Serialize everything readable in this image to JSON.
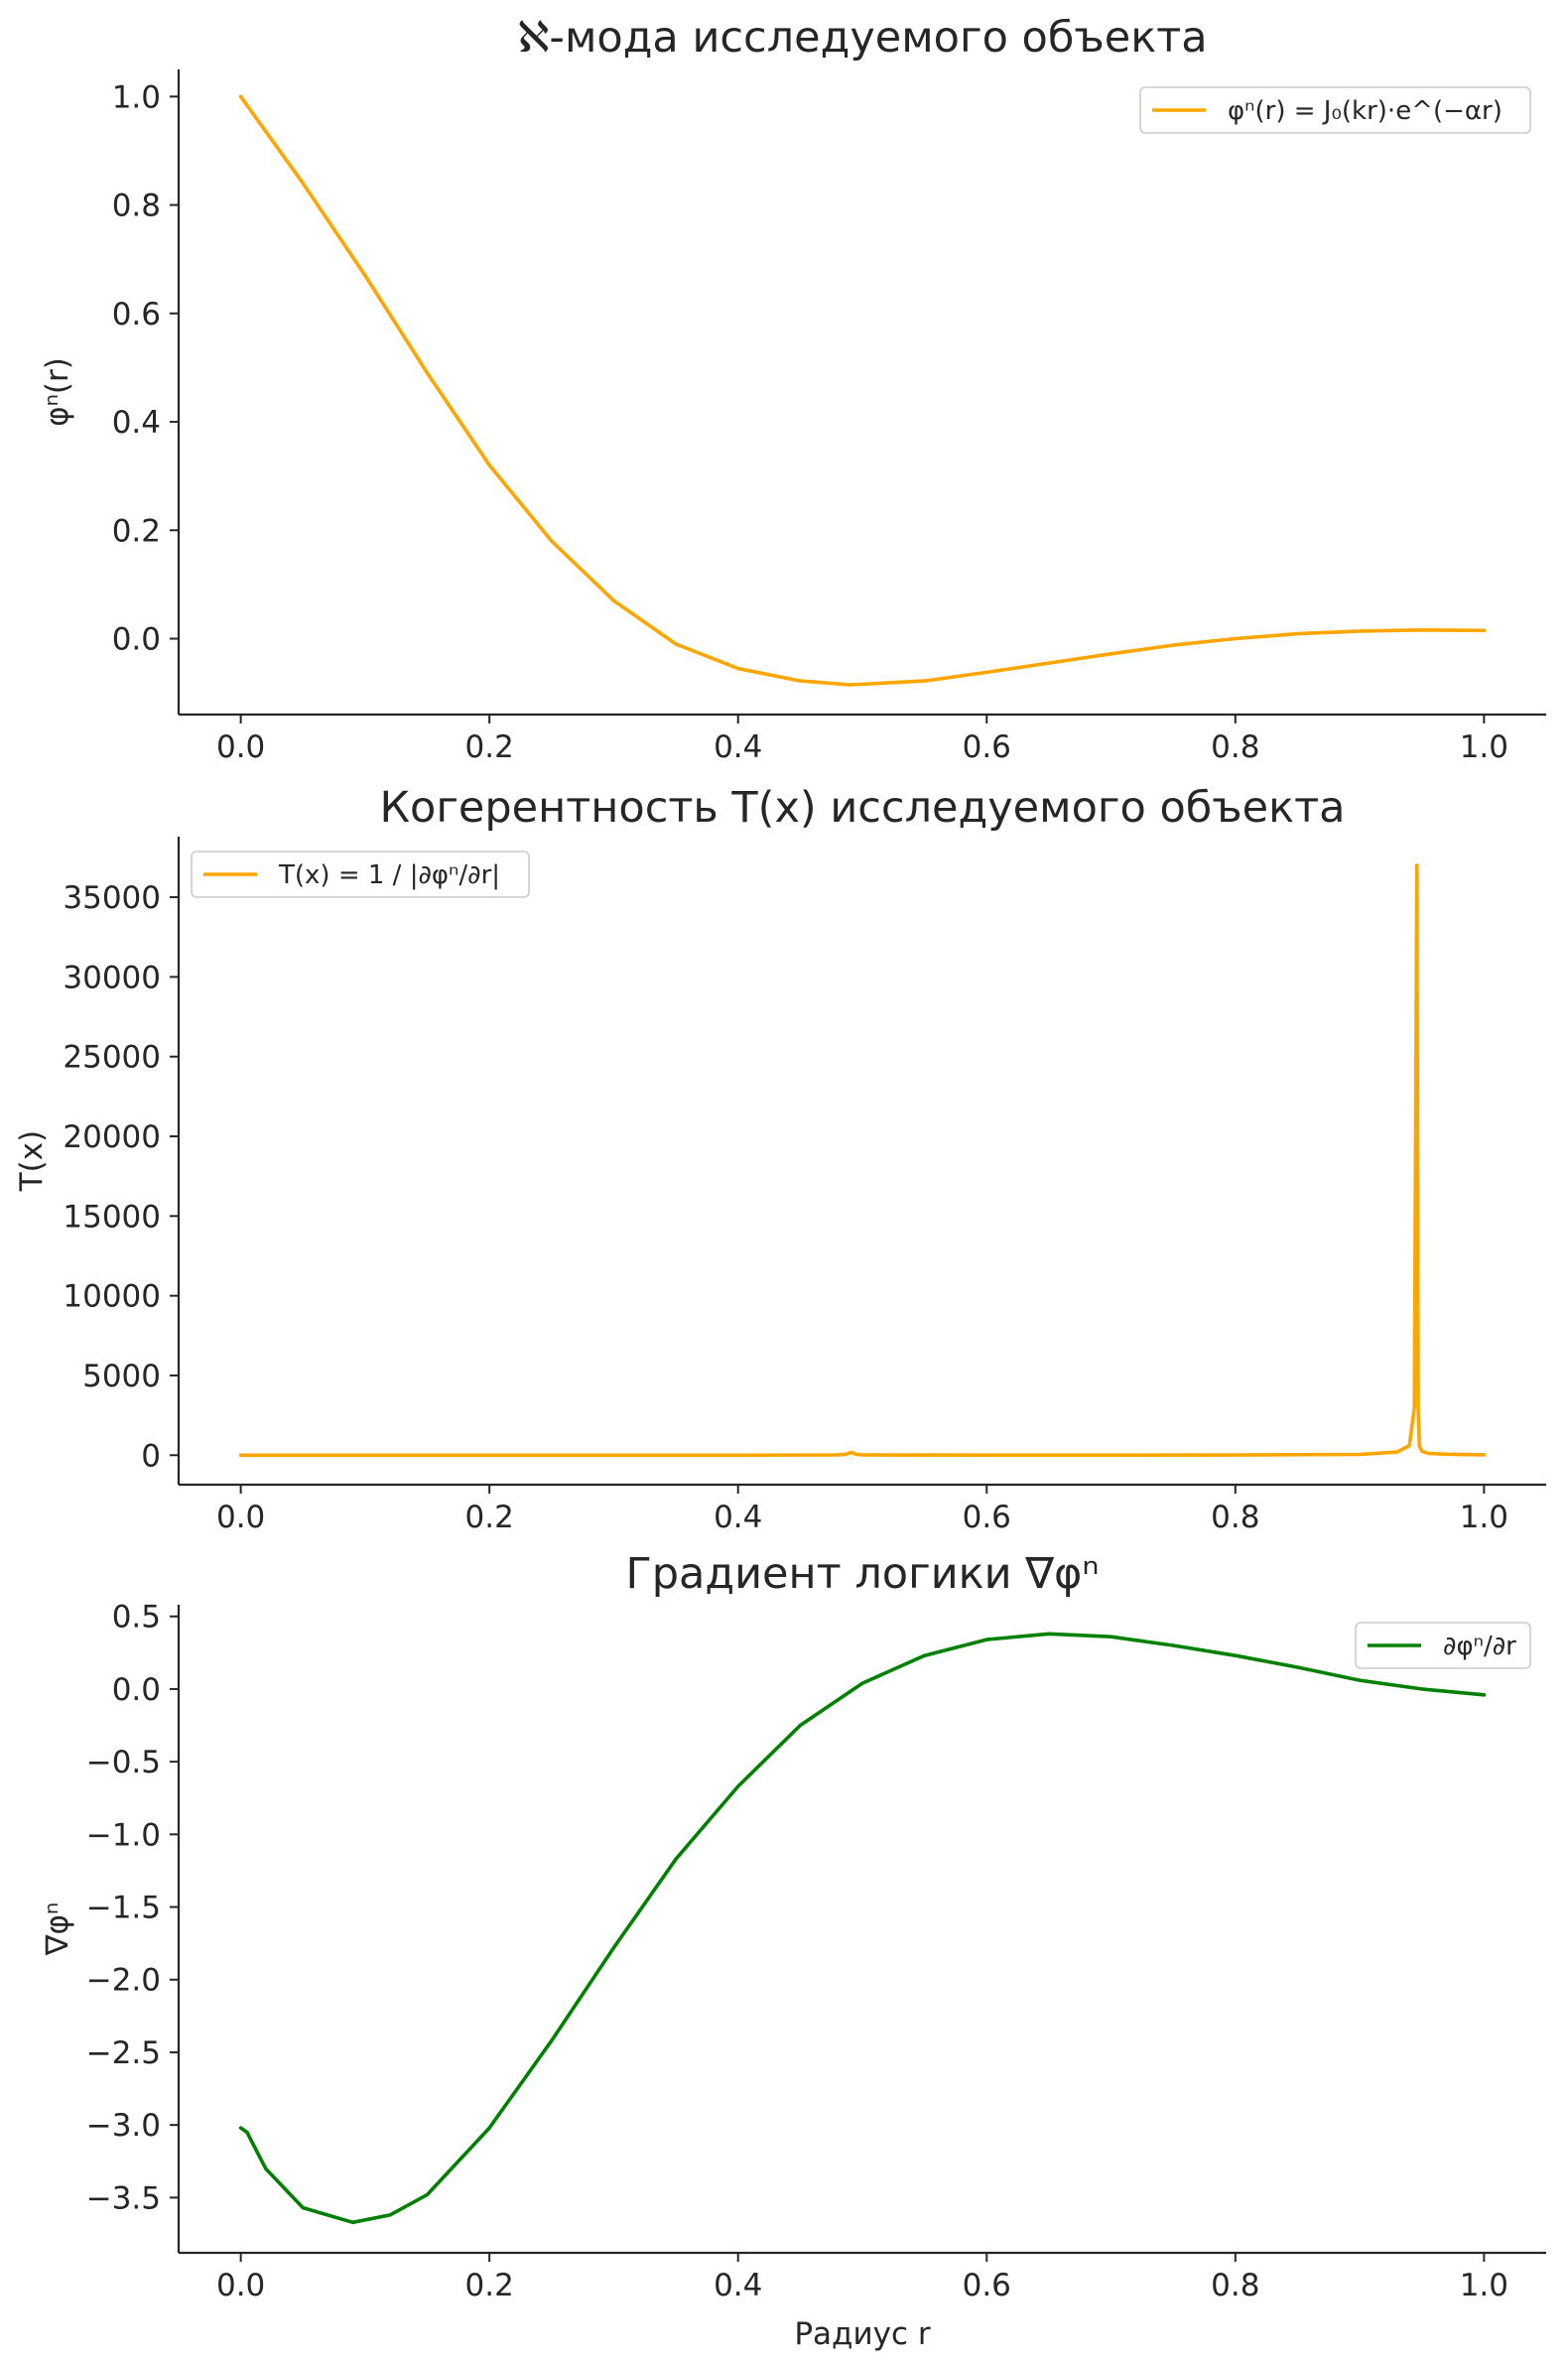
{
  "chart_data": [
    {
      "type": "line",
      "title": "ℵ-мода исследуемого объекта",
      "xlabel": "",
      "ylabel": "φⁿ(r)",
      "xlim": [
        -0.05,
        1.05
      ],
      "ylim": [
        -0.14,
        1.05
      ],
      "xticks": [
        0.0,
        0.2,
        0.4,
        0.6,
        0.8,
        1.0
      ],
      "xtick_labels": [
        "0.0",
        "0.2",
        "0.4",
        "0.6",
        "0.8",
        "1.0"
      ],
      "yticks": [
        0.0,
        0.2,
        0.4,
        0.6,
        0.8,
        1.0
      ],
      "ytick_labels": [
        "0.0",
        "0.2",
        "0.4",
        "0.6",
        "0.8",
        "1.0"
      ],
      "legend_position": "top-right",
      "grid": false,
      "series": [
        {
          "name": "φⁿ(r) = J₀(kr)·e^(−αr)",
          "color": "#FFA500",
          "x": [
            0.0,
            0.05,
            0.1,
            0.15,
            0.2,
            0.25,
            0.3,
            0.35,
            0.4,
            0.45,
            0.49,
            0.55,
            0.6,
            0.65,
            0.7,
            0.75,
            0.8,
            0.85,
            0.9,
            0.95,
            1.0
          ],
          "y": [
            1.0,
            0.84,
            0.67,
            0.49,
            0.32,
            0.18,
            0.07,
            -0.01,
            -0.055,
            -0.078,
            -0.085,
            -0.078,
            -0.062,
            -0.045,
            -0.028,
            -0.012,
            0.0,
            0.009,
            0.014,
            0.016,
            0.015
          ]
        }
      ]
    },
    {
      "type": "line",
      "title": "Когерентность T(x) исследуемого объекта",
      "xlabel": "",
      "ylabel": "T(x)",
      "xlim": [
        -0.05,
        1.05
      ],
      "ylim": [
        -1850,
        38800
      ],
      "xticks": [
        0.0,
        0.2,
        0.4,
        0.6,
        0.8,
        1.0
      ],
      "xtick_labels": [
        "0.0",
        "0.2",
        "0.4",
        "0.6",
        "0.8",
        "1.0"
      ],
      "yticks": [
        0,
        5000,
        10000,
        15000,
        20000,
        25000,
        30000,
        35000
      ],
      "ytick_labels": [
        "0",
        "5000",
        "10000",
        "15000",
        "20000",
        "25000",
        "30000",
        "35000"
      ],
      "legend_position": "top-left",
      "grid": false,
      "series": [
        {
          "name": "T(x) = 1 / |∂φⁿ/∂r|",
          "color": "#FFA500",
          "x": [
            0.0,
            0.1,
            0.2,
            0.3,
            0.4,
            0.48,
            0.487,
            0.491,
            0.495,
            0.5,
            0.6,
            0.7,
            0.8,
            0.9,
            0.93,
            0.94,
            0.944,
            0.946,
            0.947,
            0.948,
            0.95,
            0.955,
            0.97,
            1.0
          ],
          "y": [
            0.3,
            0.3,
            0.3,
            0.5,
            0.9,
            20,
            60,
            180,
            60,
            20,
            3,
            5,
            10,
            50,
            200,
            600,
            3000,
            37000,
            3000,
            600,
            250,
            120,
            60,
            25
          ]
        }
      ]
    },
    {
      "type": "line",
      "title": "Градиент логики ∇φⁿ",
      "xlabel": "Радиус r",
      "ylabel": "∇φⁿ",
      "xlim": [
        -0.05,
        1.05
      ],
      "ylim": [
        -3.88,
        0.58
      ],
      "xticks": [
        0.0,
        0.2,
        0.4,
        0.6,
        0.8,
        1.0
      ],
      "xtick_labels": [
        "0.0",
        "0.2",
        "0.4",
        "0.6",
        "0.8",
        "1.0"
      ],
      "yticks": [
        -3.5,
        -3.0,
        -2.5,
        -2.0,
        -1.5,
        -1.0,
        -0.5,
        0.0,
        0.5
      ],
      "ytick_labels": [
        "−3.5",
        "−3.0",
        "−2.5",
        "−2.0",
        "−1.5",
        "−1.0",
        "−0.5",
        "0.0",
        "0.5"
      ],
      "legend_position": "top-right",
      "grid": false,
      "series": [
        {
          "name": "∂φⁿ/∂r",
          "color": "#008000",
          "x": [
            0.0,
            0.005,
            0.02,
            0.05,
            0.09,
            0.12,
            0.15,
            0.2,
            0.25,
            0.3,
            0.35,
            0.4,
            0.45,
            0.5,
            0.55,
            0.6,
            0.65,
            0.7,
            0.75,
            0.8,
            0.85,
            0.9,
            0.95,
            1.0
          ],
          "y": [
            -3.02,
            -3.05,
            -3.3,
            -3.57,
            -3.67,
            -3.62,
            -3.48,
            -3.02,
            -2.42,
            -1.78,
            -1.17,
            -0.67,
            -0.25,
            0.04,
            0.23,
            0.34,
            0.38,
            0.36,
            0.3,
            0.23,
            0.15,
            0.06,
            0.0,
            -0.04
          ]
        }
      ]
    }
  ]
}
